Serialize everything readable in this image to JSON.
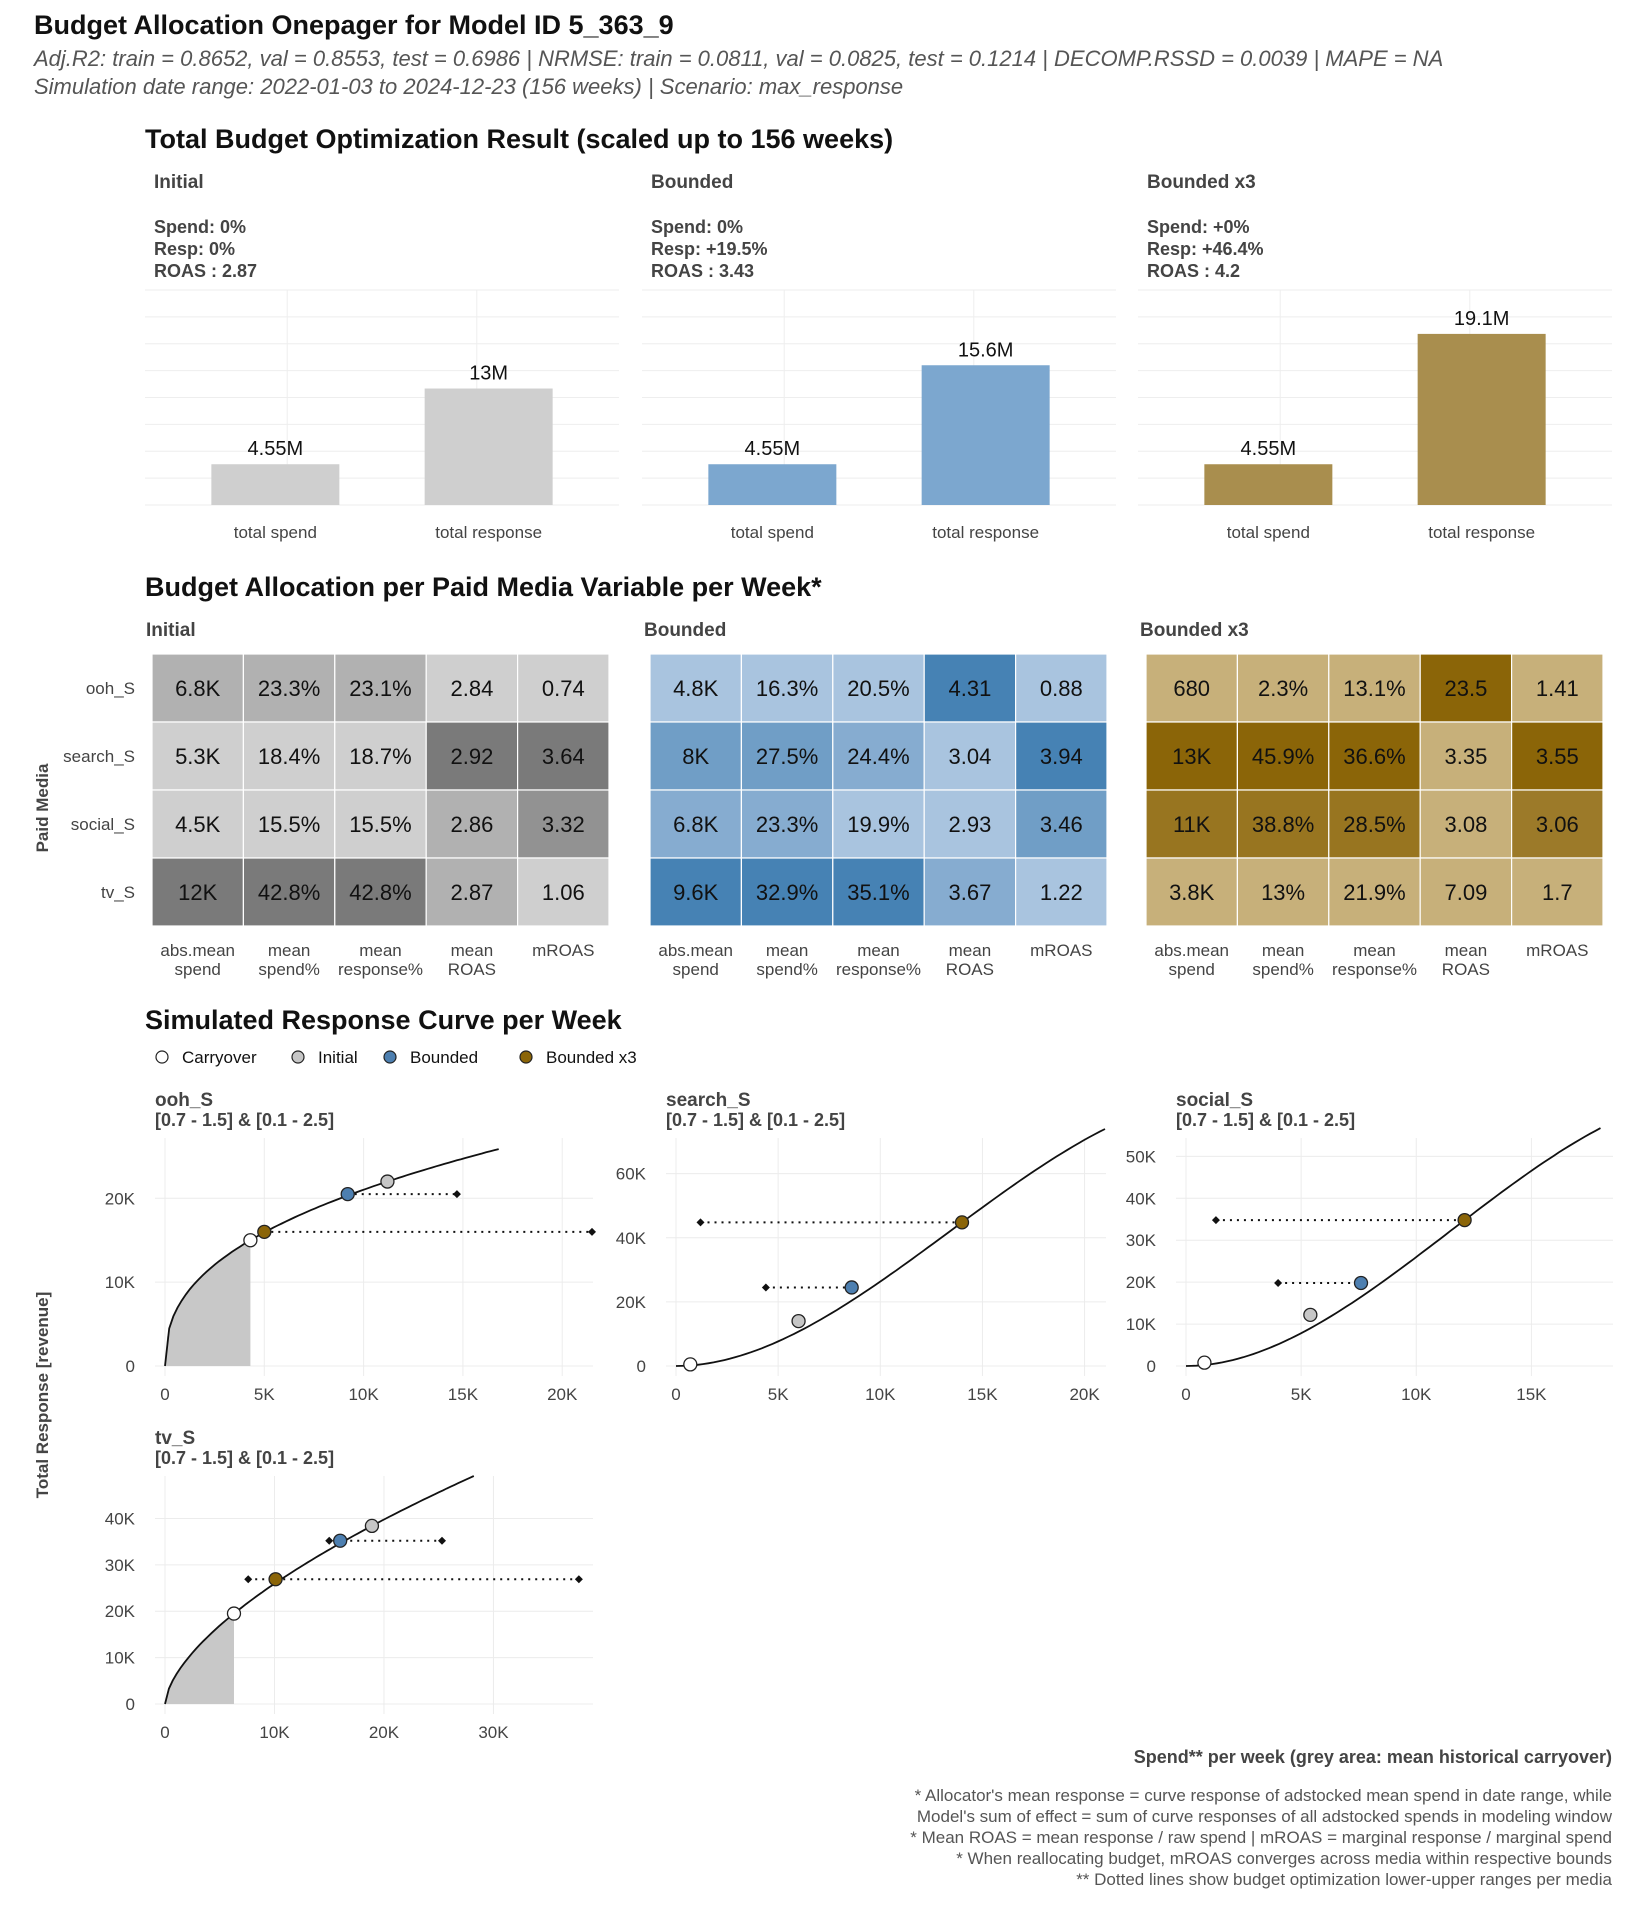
{
  "header": {
    "title": "Budget Allocation Onepager for Model ID 5_363_9",
    "subtitle1": "Adj.R2: train = 0.8652, val = 0.8553, test = 0.6986 | NRMSE: train = 0.0811, val = 0.0825, test = 0.1214 | DECOMP.RSSD = 0.0039 | MAPE = NA",
    "subtitle2": "Simulation date range: 2022-01-03 to 2024-12-23 (156 weeks) | Scenario: max_response"
  },
  "colors": {
    "initial": "#c6c6c6",
    "bounded": "#6d9ac8",
    "bounded_x3": "#8b6508"
  },
  "section1": {
    "title": "Total Budget Optimization Result (scaled up to 156 weeks)",
    "panels": [
      {
        "name": "Initial",
        "spend": "Spend: 0%",
        "resp": "Resp: 0%",
        "roas": "ROAS : 2.87",
        "color": "#cfcfcf"
      },
      {
        "name": "Bounded",
        "spend": "Spend: 0%",
        "resp": "Resp: +19.5%",
        "roas": "ROAS : 3.43",
        "color": "#7ca7cf"
      },
      {
        "name": "Bounded x3",
        "spend": "Spend: +0%",
        "resp": "Resp: +46.4%",
        "roas": "ROAS : 4.2",
        "color": "#a98e4e"
      }
    ],
    "chart_data": {
      "type": "bar",
      "categories": [
        "total spend",
        "total response"
      ],
      "series": [
        {
          "name": "Initial",
          "values": [
            4.55,
            13
          ],
          "labels": [
            "4.55M",
            "13M"
          ]
        },
        {
          "name": "Bounded",
          "values": [
            4.55,
            15.6
          ],
          "labels": [
            "4.55M",
            "15.6M"
          ]
        },
        {
          "name": "Bounded x3",
          "values": [
            4.55,
            19.1
          ],
          "labels": [
            "4.55M",
            "19.1M"
          ]
        }
      ],
      "ylim": [
        0,
        24
      ]
    }
  },
  "section2": {
    "title": "Budget Allocation per Paid Media Variable per Week*",
    "ylabel": "Paid Media",
    "rows": [
      "ooh_S",
      "search_S",
      "social_S",
      "tv_S"
    ],
    "columns": [
      [
        "abs.mean",
        "spend"
      ],
      [
        "mean",
        "spend%"
      ],
      [
        "mean",
        "response%"
      ],
      [
        "mean",
        "ROAS"
      ],
      [
        "mROAS"
      ]
    ],
    "chart_data": {
      "type": "heatmap",
      "panels": [
        {
          "name": "Initial",
          "palette": "grey",
          "cells": [
            [
              "6.8K",
              "23.3%",
              "23.1%",
              "2.84",
              "0.74"
            ],
            [
              "5.3K",
              "18.4%",
              "18.7%",
              "2.92",
              "3.64"
            ],
            [
              "4.5K",
              "15.5%",
              "15.5%",
              "2.86",
              "3.32"
            ],
            [
              "12K",
              "42.8%",
              "42.8%",
              "2.87",
              "1.06"
            ]
          ],
          "intensity": [
            [
              0.55,
              0.55,
              0.55,
              0.3,
              0.3
            ],
            [
              0.3,
              0.3,
              0.3,
              1,
              1
            ],
            [
              0.3,
              0.3,
              0.3,
              0.55,
              0.8
            ],
            [
              1,
              1,
              1,
              0.55,
              0.3
            ]
          ]
        },
        {
          "name": "Bounded",
          "palette": "blue",
          "cells": [
            [
              "4.8K",
              "16.3%",
              "20.5%",
              "4.31",
              "0.88"
            ],
            [
              "8K",
              "27.5%",
              "24.4%",
              "3.04",
              "3.94"
            ],
            [
              "6.8K",
              "23.3%",
              "19.9%",
              "2.93",
              "3.46"
            ],
            [
              "9.6K",
              "32.9%",
              "35.1%",
              "3.67",
              "1.22"
            ]
          ],
          "intensity": [
            [
              0.3,
              0.3,
              0.3,
              1,
              0.3
            ],
            [
              0.7,
              0.7,
              0.55,
              0.3,
              1
            ],
            [
              0.55,
              0.55,
              0.3,
              0.3,
              0.7
            ],
            [
              1,
              1,
              1,
              0.55,
              0.3
            ]
          ]
        },
        {
          "name": "Bounded x3",
          "palette": "gold",
          "cells": [
            [
              "680",
              "2.3%",
              "13.1%",
              "23.5",
              "1.41"
            ],
            [
              "13K",
              "45.9%",
              "36.6%",
              "3.35",
              "3.55"
            ],
            [
              "11K",
              "38.8%",
              "28.5%",
              "3.08",
              "3.06"
            ],
            [
              "3.8K",
              "13%",
              "21.9%",
              "7.09",
              "1.7"
            ]
          ],
          "intensity": [
            [
              0.3,
              0.3,
              0.3,
              1,
              0.3
            ],
            [
              1,
              1,
              1,
              0.3,
              1
            ],
            [
              0.85,
              0.85,
              0.85,
              0.3,
              0.8
            ],
            [
              0.3,
              0.3,
              0.3,
              0.3,
              0.3
            ]
          ]
        }
      ]
    }
  },
  "section3": {
    "title": "Simulated Response Curve per Week",
    "legend": [
      "Carryover",
      "Initial",
      "Bounded",
      "Bounded x3"
    ],
    "ylabel": "Total Response [revenue]",
    "xlabel": "Spend** per week (grey area: mean historical carryover)",
    "chart_data": {
      "type": "line",
      "panels": [
        {
          "name": "ooh_S",
          "bounds": "[0.7 - 1.5] & [0.1 - 2.5]",
          "shape": "concave",
          "xmax": 21500,
          "ymax": 26000,
          "xticks": [
            0,
            5000,
            10000,
            15000,
            20000
          ],
          "xtick_labels": [
            "0",
            "5K",
            "10K",
            "15K",
            "20K"
          ],
          "yticks": [
            0,
            10000,
            20000
          ],
          "ytick_labels": [
            "0",
            "10K",
            "20K"
          ],
          "curve_end": 16800,
          "carry": 4300,
          "carry_y": 15000,
          "initial": [
            11200,
            22000
          ],
          "bounded": [
            9200,
            20500
          ],
          "bx3": [
            5000,
            16000
          ],
          "b_range": [
            9200,
            14700
          ],
          "bx3_range": [
            5000,
            21500
          ]
        },
        {
          "name": "search_S",
          "bounds": "[0.7 - 1.5] & [0.1 - 2.5]",
          "shape": "sigmoid",
          "xmax": 21000,
          "ymax": 68000,
          "xticks": [
            0,
            5000,
            10000,
            15000,
            20000
          ],
          "xtick_labels": [
            "0",
            "5K",
            "10K",
            "15K",
            "20K"
          ],
          "yticks": [
            0,
            20000,
            40000,
            60000
          ],
          "ytick_labels": [
            "0",
            "20K",
            "40K",
            "60K"
          ],
          "curve_end": 21000,
          "curve_end_y": 66000,
          "carry": 700,
          "carry_y": 500,
          "initial": [
            6000,
            14000
          ],
          "bounded": [
            8600,
            24500
          ],
          "bx3": [
            14000,
            44800
          ],
          "b_range": [
            4400,
            8600
          ],
          "bx3_range": [
            1200,
            14000
          ]
        },
        {
          "name": "social_S",
          "bounds": "[0.7 - 1.5] & [0.1 - 2.5]",
          "shape": "sigmoid",
          "xmax": 18500,
          "ymax": 52000,
          "xticks": [
            0,
            5000,
            10000,
            15000
          ],
          "xtick_labels": [
            "0",
            "5K",
            "10K",
            "15K"
          ],
          "yticks": [
            0,
            10000,
            20000,
            30000,
            40000,
            50000
          ],
          "ytick_labels": [
            "0",
            "10K",
            "20K",
            "30K",
            "40K",
            "50K"
          ],
          "curve_end": 18000,
          "curve_end_y": 50800,
          "carry": 800,
          "carry_y": 800,
          "initial": [
            5400,
            12200
          ],
          "bounded": [
            7600,
            19800
          ],
          "bx3": [
            12100,
            34800
          ],
          "b_range": [
            4000,
            7600
          ],
          "bx3_range": [
            1300,
            12100
          ]
        },
        {
          "name": "tv_S",
          "bounds": "[0.7 - 1.5] & [0.1 - 2.5]",
          "shape": "concave",
          "xmax": 39000,
          "ymax": 47000,
          "xticks": [
            0,
            10000,
            20000,
            30000
          ],
          "xtick_labels": [
            "0",
            "10K",
            "20K",
            "30K"
          ],
          "yticks": [
            0,
            10000,
            20000,
            30000,
            40000
          ],
          "ytick_labels": [
            "0",
            "10K",
            "20K",
            "30K",
            "40K"
          ],
          "curve_end": 28200,
          "carry": 6300,
          "carry_y": 19500,
          "initial": [
            18900,
            38400
          ],
          "bounded": [
            16000,
            35200
          ],
          "bx3": [
            10100,
            26900
          ],
          "b_range": [
            15000,
            25300
          ],
          "bx3_range": [
            7600,
            37800
          ]
        }
      ]
    }
  },
  "footnotes": [
    "* Allocator's mean response = curve response of adstocked mean spend in date range, while",
    "Model's sum of effect = sum of curve responses of all adstocked spends in modeling window",
    "* Mean ROAS = mean response / raw spend | mROAS = marginal response / marginal spend",
    "* When reallocating budget, mROAS converges across media within respective bounds",
    "** Dotted lines show budget optimization lower-upper ranges per media"
  ]
}
